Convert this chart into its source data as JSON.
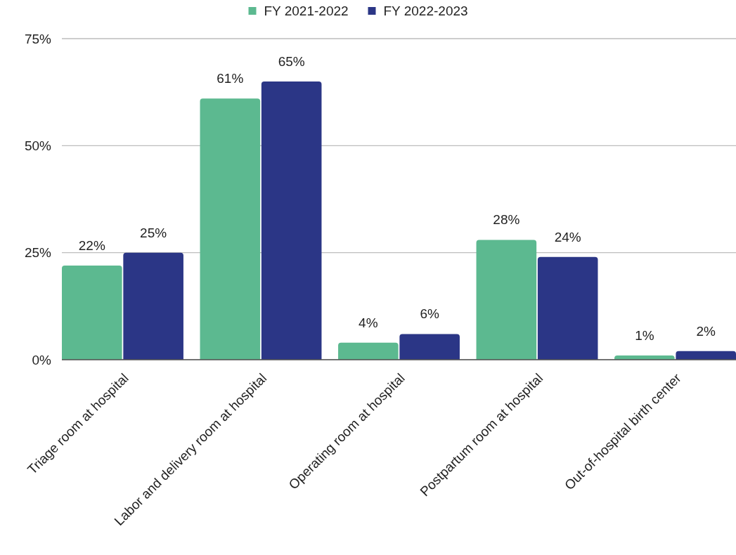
{
  "chart_data": {
    "type": "bar",
    "categories": [
      "Triage room at hospital",
      "Labor and delivery room at hospital",
      "Operating room at hospital",
      "Postpartum room at hospital",
      "Out-of-hospital birth center"
    ],
    "series": [
      {
        "name": "FY 2021-2022",
        "color": "#5cb990",
        "values": [
          22,
          61,
          4,
          28,
          1
        ],
        "value_labels": [
          "22%",
          "61%",
          "4%",
          "28%",
          "1%"
        ]
      },
      {
        "name": "FY 2022-2023",
        "color": "#2b3686",
        "values": [
          25,
          65,
          6,
          24,
          2
        ],
        "value_labels": [
          "25%",
          "65%",
          "6%",
          "24%",
          "2%"
        ]
      }
    ],
    "ylim": [
      0,
      75
    ],
    "yticks": [
      {
        "value": 0,
        "label": "0%"
      },
      {
        "value": 25,
        "label": "25%"
      },
      {
        "value": 50,
        "label": "50%"
      },
      {
        "value": 75,
        "label": "75%"
      }
    ],
    "grid": "y",
    "legend": "top"
  }
}
